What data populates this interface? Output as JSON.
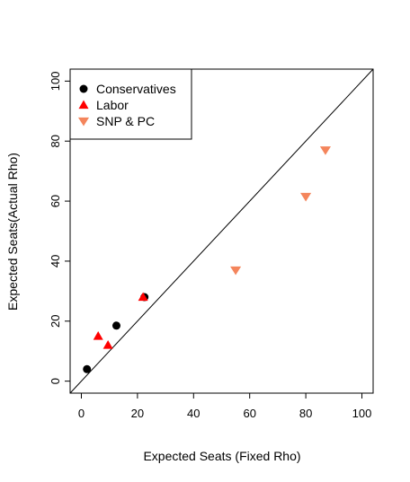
{
  "chart_data": {
    "type": "scatter",
    "title": "",
    "xlabel": "Expected Seats (Fixed Rho)",
    "ylabel": "Expected Seats(Actual Rho)",
    "xlim": [
      -4,
      104
    ],
    "ylim": [
      -4,
      104
    ],
    "x_ticks": [
      0,
      20,
      40,
      60,
      80,
      100
    ],
    "y_ticks": [
      0,
      20,
      40,
      60,
      80,
      100
    ],
    "grid": false,
    "legend_position": "top-left",
    "reference_line": {
      "type": "y=x"
    },
    "series": [
      {
        "name": "Conservatives",
        "marker": "circle",
        "color": "#000000",
        "points": [
          [
            2,
            4
          ],
          [
            12.5,
            18.5
          ],
          [
            22.5,
            28
          ]
        ]
      },
      {
        "name": "Labor",
        "marker": "triangle-up",
        "color": "#ff0000",
        "points": [
          [
            6,
            15
          ],
          [
            9.5,
            12
          ],
          [
            22,
            28
          ]
        ]
      },
      {
        "name": "SNP & PC",
        "marker": "triangle-down",
        "color": "#f4855c",
        "points": [
          [
            55,
            37
          ],
          [
            80,
            61.5
          ],
          [
            87,
            77
          ]
        ]
      }
    ]
  }
}
